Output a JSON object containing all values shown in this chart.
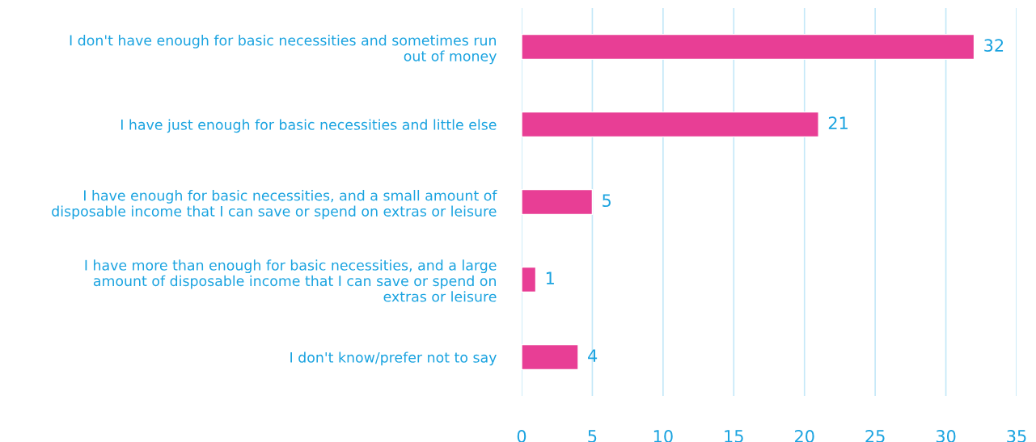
{
  "chart_data": {
    "type": "bar",
    "orientation": "horizontal",
    "categories": [
      "I don't have enough for basic necessities and sometimes run\nout of money",
      "I have just enough for basic necessities and little else",
      "I have enough for basic necessities, and a small amount of\ndisposable income that I can save or spend on extras or leisure",
      "I have more than enough for basic necessities, and a large\namount of disposable income that I can save or spend on\nextras or leisure",
      "I don't know/prefer not to say"
    ],
    "values": [
      32,
      21,
      5,
      1,
      4
    ],
    "color": "#e83e95",
    "xlim": [
      0,
      35
    ],
    "xticks": [
      0,
      5,
      10,
      15,
      20,
      25,
      30,
      35
    ],
    "grid": "x",
    "data_labels": true,
    "legend": false
  }
}
